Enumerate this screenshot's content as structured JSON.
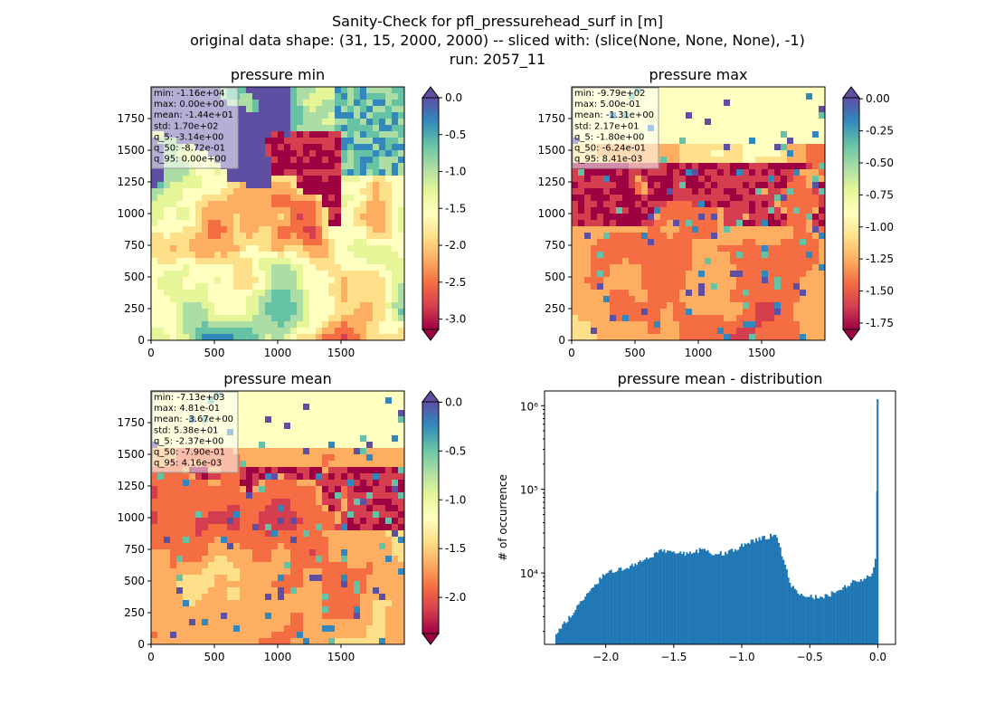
{
  "suptitle": {
    "line1": "Sanity-Check for pfl_pressurehead_surf in [m]",
    "line2": "original data shape: (31, 15, 2000, 2000) -- sliced with: (slice(None, None, None), -1)",
    "line3": "run: 2057_11"
  },
  "colors": {
    "spectral": [
      "#9e0142",
      "#d53e4f",
      "#f46d43",
      "#fdae61",
      "#fee08b",
      "#ffffbf",
      "#e6f598",
      "#abdda4",
      "#66c2a5",
      "#3288bd",
      "#5e4fa2"
    ],
    "hist_bar": "#1f77b4"
  },
  "chart_data": [
    {
      "type": "heatmap",
      "title": "pressure min",
      "x_ticks": [
        "0",
        "500",
        "1000",
        "1500"
      ],
      "y_ticks": [
        "0",
        "250",
        "500",
        "750",
        "1000",
        "1250",
        "1500",
        "1750"
      ],
      "xlim": [
        0,
        2000
      ],
      "ylim": [
        0,
        2000
      ],
      "colorbar": {
        "ticks": [
          "0.0",
          "-0.5",
          "-1.0",
          "-1.5",
          "-2.0",
          "-2.5",
          "-3.0"
        ],
        "vmin": -3.14,
        "vmax": 0.0,
        "extend": "both"
      },
      "stats": [
        "min: -1.16e+04",
        "max: 0.00e+00",
        "mean: -1.44e+01",
        "std: 1.70e+02",
        "q_5: -3.14e+00",
        "q_50: -8.72e-01",
        "q_95: 0.00e+00"
      ]
    },
    {
      "type": "heatmap",
      "title": "pressure max",
      "x_ticks": [
        "0",
        "500",
        "1000",
        "1500"
      ],
      "y_ticks": [
        "0",
        "250",
        "500",
        "750",
        "1000",
        "1250",
        "1500",
        "1750"
      ],
      "xlim": [
        0,
        2000
      ],
      "ylim": [
        0,
        2000
      ],
      "colorbar": {
        "ticks": [
          "0.00",
          "-0.25",
          "-0.50",
          "-0.75",
          "-1.00",
          "-1.25",
          "-1.50",
          "-1.75"
        ],
        "vmin": -1.8,
        "vmax": 0.0084,
        "extend": "both"
      },
      "stats": [
        "min: -9.79e+02",
        "max: 5.00e-01",
        "mean: -1.31e+00",
        "std: 2.17e+01",
        "q_5: -1.80e+00",
        "q_50: -6.24e-01",
        "q_95: 8.41e-03"
      ]
    },
    {
      "type": "heatmap",
      "title": "pressure mean",
      "x_ticks": [
        "0",
        "500",
        "1000",
        "1500"
      ],
      "y_ticks": [
        "0",
        "250",
        "500",
        "750",
        "1000",
        "1250",
        "1500",
        "1750"
      ],
      "xlim": [
        0,
        2000
      ],
      "ylim": [
        0,
        2000
      ],
      "colorbar": {
        "ticks": [
          "0.0",
          "-0.5",
          "-1.0",
          "-1.5",
          "-2.0"
        ],
        "vmin": -2.37,
        "vmax": 0.0042,
        "extend": "both"
      },
      "stats": [
        "min: -7.13e+03",
        "max: 4.81e-01",
        "mean: -3.67e+00",
        "std: 5.38e+01",
        "q_5: -2.37e+00",
        "q_50: -7.90e-01",
        "q_95: 4.16e-03"
      ]
    },
    {
      "type": "bar",
      "title": "pressure mean - distribution",
      "ylabel": "# of occurrence",
      "yscale": "log",
      "xlim": [
        -2.45,
        0.13
      ],
      "ylim": [
        1400,
        1500000
      ],
      "x_ticks": [
        "−2.0",
        "−1.5",
        "−1.0",
        "−0.5",
        "0.0"
      ],
      "x_tick_values": [
        -2.0,
        -1.5,
        -1.0,
        -0.5,
        0.0
      ],
      "y_ticks": [
        "10⁴",
        "10⁵",
        "10⁶"
      ],
      "y_tick_values": [
        10000,
        100000,
        1000000
      ],
      "profile": [
        [
          -2.37,
          1800
        ],
        [
          -2.25,
          3200
        ],
        [
          -2.1,
          6800
        ],
        [
          -2.0,
          9800
        ],
        [
          -1.9,
          11000
        ],
        [
          -1.8,
          12500
        ],
        [
          -1.7,
          14500
        ],
        [
          -1.6,
          19000
        ],
        [
          -1.5,
          17500
        ],
        [
          -1.4,
          17000
        ],
        [
          -1.3,
          19000
        ],
        [
          -1.2,
          17000
        ],
        [
          -1.1,
          17500
        ],
        [
          -1.0,
          21000
        ],
        [
          -0.9,
          25000
        ],
        [
          -0.8,
          27000
        ],
        [
          -0.76,
          31000
        ],
        [
          -0.72,
          20000
        ],
        [
          -0.68,
          12000
        ],
        [
          -0.64,
          7500
        ],
        [
          -0.6,
          6000
        ],
        [
          -0.5,
          5200
        ],
        [
          -0.4,
          5200
        ],
        [
          -0.3,
          6000
        ],
        [
          -0.2,
          7500
        ],
        [
          -0.1,
          8500
        ],
        [
          -0.04,
          9500
        ],
        [
          -0.01,
          17000
        ],
        [
          0.0,
          1200000
        ]
      ]
    }
  ]
}
